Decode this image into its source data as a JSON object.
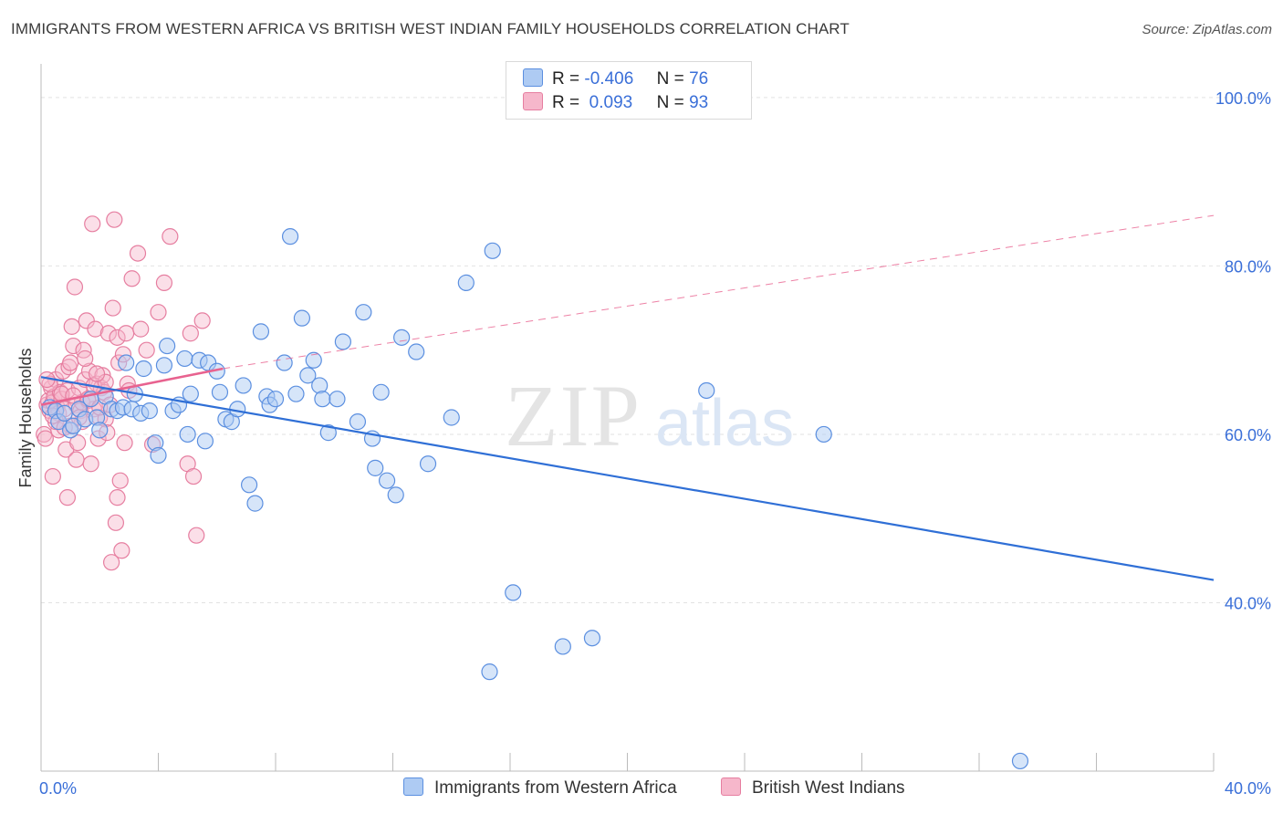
{
  "title": "IMMIGRANTS FROM WESTERN AFRICA VS BRITISH WEST INDIAN FAMILY HOUSEHOLDS CORRELATION CHART",
  "source": "Source: ZipAtlas.com",
  "watermark": {
    "zip": "ZIP",
    "atlas": "atlas"
  },
  "legend": {
    "rows": [
      {
        "r_label": "R =",
        "r_value": "-0.406",
        "n_label": "N =",
        "n_value": "76"
      },
      {
        "r_label": "R =",
        "r_value": " 0.093",
        "n_label": "N =",
        "n_value": "93"
      }
    ]
  },
  "bottom_legend": {
    "series1": "Immigrants from Western Africa",
    "series2": "British West Indians"
  },
  "colors": {
    "blue_fill": "#aecbf3",
    "blue_stroke": "#5b8fe0",
    "blue_line": "#2f6fd6",
    "pink_fill": "#f6b7cb",
    "pink_stroke": "#e67ea0",
    "pink_line": "#e8628f",
    "tick_text": "#3a6fd8",
    "grid": "#e2e2e2"
  },
  "chart_data": {
    "type": "scatter",
    "title": "IMMIGRANTS FROM WESTERN AFRICA VS BRITISH WEST INDIAN FAMILY HOUSEHOLDS CORRELATION CHART",
    "xlabel": "",
    "ylabel": "Family Households",
    "xlim": [
      0,
      40
    ],
    "ylim": [
      20,
      104
    ],
    "x_tick_labels": [
      "0.0%",
      "40.0%"
    ],
    "y_ticks": [
      40,
      60,
      80,
      100
    ],
    "y_tick_labels": [
      "40.0%",
      "60.0%",
      "80.0%",
      "100.0%"
    ],
    "grid": true,
    "legend_position": "top-center",
    "series": [
      {
        "name": "Immigrants from Western Africa",
        "color": "blue",
        "trend": {
          "x": [
            0,
            40
          ],
          "y": [
            66.8,
            42.7
          ],
          "style": "solid"
        },
        "points": [
          [
            0.3,
            63.2
          ],
          [
            0.5,
            62.8
          ],
          [
            0.6,
            61.5
          ],
          [
            0.8,
            62.5
          ],
          [
            1.0,
            60.5
          ],
          [
            1.1,
            61.0
          ],
          [
            1.3,
            63.0
          ],
          [
            1.5,
            61.8
          ],
          [
            1.7,
            64.2
          ],
          [
            1.9,
            62.0
          ],
          [
            2.0,
            60.5
          ],
          [
            2.2,
            64.5
          ],
          [
            2.4,
            63.0
          ],
          [
            2.6,
            62.8
          ],
          [
            2.8,
            63.2
          ],
          [
            2.9,
            68.5
          ],
          [
            3.1,
            63.0
          ],
          [
            3.2,
            64.8
          ],
          [
            3.4,
            62.5
          ],
          [
            3.5,
            67.8
          ],
          [
            3.7,
            62.8
          ],
          [
            3.9,
            59.0
          ],
          [
            4.0,
            57.5
          ],
          [
            4.2,
            68.2
          ],
          [
            4.3,
            70.5
          ],
          [
            4.5,
            62.8
          ],
          [
            4.7,
            63.5
          ],
          [
            4.9,
            69.0
          ],
          [
            5.0,
            60.0
          ],
          [
            5.1,
            64.8
          ],
          [
            5.4,
            68.8
          ],
          [
            5.6,
            59.2
          ],
          [
            5.7,
            68.5
          ],
          [
            6.0,
            67.5
          ],
          [
            6.1,
            65.0
          ],
          [
            6.3,
            61.8
          ],
          [
            6.5,
            61.5
          ],
          [
            6.7,
            63.0
          ],
          [
            6.9,
            65.8
          ],
          [
            7.1,
            54.0
          ],
          [
            7.3,
            51.8
          ],
          [
            7.5,
            72.2
          ],
          [
            7.7,
            64.5
          ],
          [
            7.8,
            63.5
          ],
          [
            8.0,
            64.2
          ],
          [
            8.3,
            68.5
          ],
          [
            8.5,
            83.5
          ],
          [
            8.7,
            64.8
          ],
          [
            8.9,
            73.8
          ],
          [
            9.1,
            67.0
          ],
          [
            9.3,
            68.8
          ],
          [
            9.5,
            65.8
          ],
          [
            9.6,
            64.2
          ],
          [
            9.8,
            60.2
          ],
          [
            10.1,
            64.2
          ],
          [
            10.3,
            71.0
          ],
          [
            10.8,
            61.5
          ],
          [
            11.0,
            74.5
          ],
          [
            11.3,
            59.5
          ],
          [
            11.4,
            56.0
          ],
          [
            11.6,
            65.0
          ],
          [
            11.8,
            54.5
          ],
          [
            12.1,
            52.8
          ],
          [
            12.3,
            71.5
          ],
          [
            12.8,
            69.8
          ],
          [
            13.2,
            56.5
          ],
          [
            14.0,
            62.0
          ],
          [
            14.5,
            78.0
          ],
          [
            15.4,
            81.8
          ],
          [
            15.3,
            31.8
          ],
          [
            16.1,
            41.2
          ],
          [
            17.8,
            34.8
          ],
          [
            18.8,
            35.8
          ],
          [
            22.7,
            65.2
          ],
          [
            26.7,
            60.0
          ],
          [
            33.4,
            21.2
          ]
        ]
      },
      {
        "name": "British West Indians",
        "color": "pink",
        "trend": {
          "x": [
            0,
            6.2
          ],
          "y": [
            63.5,
            67.8
          ],
          "style": "solid"
        },
        "trend_extension": {
          "x": [
            6.2,
            40
          ],
          "y": [
            67.8,
            86.0
          ],
          "style": "dashed"
        },
        "points": [
          [
            0.1,
            60.0
          ],
          [
            0.15,
            59.5
          ],
          [
            0.2,
            63.5
          ],
          [
            0.25,
            64.0
          ],
          [
            0.3,
            62.8
          ],
          [
            0.35,
            65.5
          ],
          [
            0.4,
            63.8
          ],
          [
            0.45,
            64.5
          ],
          [
            0.5,
            66.5
          ],
          [
            0.55,
            63.2
          ],
          [
            0.6,
            62.5
          ],
          [
            0.65,
            65.0
          ],
          [
            0.7,
            64.2
          ],
          [
            0.75,
            67.5
          ],
          [
            0.8,
            63.0
          ],
          [
            0.85,
            58.2
          ],
          [
            0.9,
            65.2
          ],
          [
            0.95,
            68.0
          ],
          [
            1.0,
            61.0
          ],
          [
            1.05,
            72.8
          ],
          [
            1.1,
            70.5
          ],
          [
            1.15,
            77.5
          ],
          [
            1.2,
            63.5
          ],
          [
            1.25,
            59.0
          ],
          [
            1.3,
            65.5
          ],
          [
            1.35,
            62.8
          ],
          [
            1.4,
            61.5
          ],
          [
            1.45,
            70.0
          ],
          [
            1.5,
            66.5
          ],
          [
            1.55,
            73.5
          ],
          [
            1.6,
            64.0
          ],
          [
            1.65,
            67.5
          ],
          [
            1.7,
            56.5
          ],
          [
            1.75,
            85.0
          ],
          [
            1.8,
            63.0
          ],
          [
            1.85,
            72.5
          ],
          [
            1.9,
            66.0
          ],
          [
            1.95,
            59.5
          ],
          [
            2.0,
            62.0
          ],
          [
            2.05,
            65.5
          ],
          [
            2.1,
            67.0
          ],
          [
            2.15,
            65.0
          ],
          [
            2.2,
            61.8
          ],
          [
            2.25,
            60.2
          ],
          [
            2.3,
            72.0
          ],
          [
            2.35,
            63.5
          ],
          [
            2.4,
            44.8
          ],
          [
            2.45,
            75.0
          ],
          [
            2.5,
            85.5
          ],
          [
            2.55,
            49.5
          ],
          [
            2.6,
            71.5
          ],
          [
            2.65,
            68.5
          ],
          [
            2.7,
            54.5
          ],
          [
            2.75,
            46.2
          ],
          [
            2.8,
            69.5
          ],
          [
            2.85,
            59.0
          ],
          [
            2.9,
            72.0
          ],
          [
            2.95,
            66.0
          ],
          [
            3.0,
            65.2
          ],
          [
            3.1,
            78.5
          ],
          [
            3.3,
            81.5
          ],
          [
            3.4,
            72.5
          ],
          [
            3.6,
            70.0
          ],
          [
            3.8,
            58.8
          ],
          [
            4.0,
            74.5
          ],
          [
            4.2,
            78.0
          ],
          [
            4.4,
            83.5
          ],
          [
            5.0,
            56.5
          ],
          [
            5.2,
            55.0
          ],
          [
            5.3,
            48.0
          ],
          [
            5.5,
            73.5
          ],
          [
            0.4,
            55.0
          ],
          [
            0.6,
            60.5
          ],
          [
            0.9,
            52.5
          ],
          [
            1.2,
            57.0
          ],
          [
            0.3,
            66.0
          ],
          [
            0.5,
            61.5
          ],
          [
            0.7,
            64.8
          ],
          [
            1.0,
            68.5
          ],
          [
            1.4,
            63.8
          ],
          [
            1.6,
            64.2
          ],
          [
            1.8,
            65.8
          ],
          [
            2.0,
            63.2
          ],
          [
            2.2,
            66.2
          ],
          [
            2.6,
            52.5
          ],
          [
            0.2,
            66.5
          ],
          [
            0.4,
            62.2
          ],
          [
            0.8,
            60.8
          ],
          [
            1.1,
            64.6
          ],
          [
            1.3,
            62.0
          ],
          [
            1.5,
            69.0
          ],
          [
            5.1,
            72.0
          ],
          [
            1.9,
            67.2
          ]
        ]
      }
    ]
  }
}
